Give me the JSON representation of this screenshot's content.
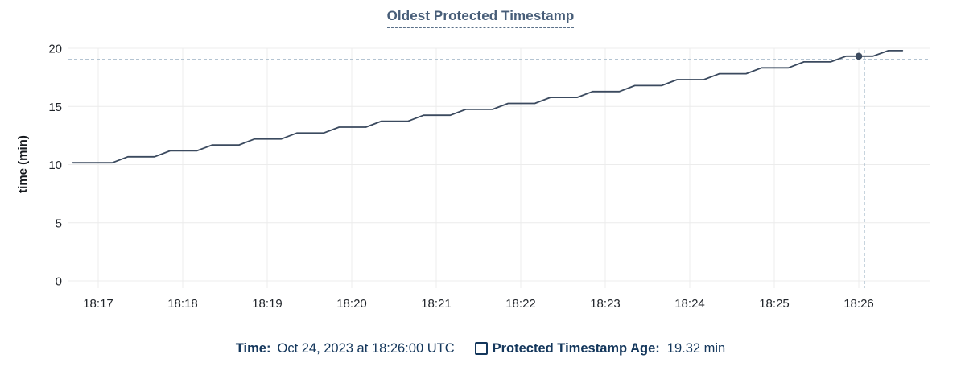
{
  "title": "Oldest Protected Timestamp",
  "y_axis": {
    "label": "time (min)"
  },
  "tooltip": {
    "time_label": "Time:",
    "time_value": "Oct 24, 2023 at 18:26:00 UTC",
    "series_label": "Protected Timestamp Age:",
    "series_value": "19.32 min"
  },
  "colors": {
    "navy_text": "#14375c",
    "title_text": "#475d78",
    "line": "#3b4a5f",
    "crosshair": "#a9bccb",
    "grid": "#ececec",
    "tick_text": "#1f2329",
    "axis_title_text": "#15181d"
  },
  "chart_data": {
    "type": "line",
    "title": "Oldest Protected Timestamp",
    "xlabel": "",
    "ylabel": "time (min)",
    "ylim": [
      0,
      20
    ],
    "y_ticks": [
      0,
      5,
      10,
      15,
      20
    ],
    "x_ticks": [
      {
        "t": 0,
        "label": "18:17"
      },
      {
        "t": 60,
        "label": "18:18"
      },
      {
        "t": 120,
        "label": "18:19"
      },
      {
        "t": 180,
        "label": "18:20"
      },
      {
        "t": 240,
        "label": "18:21"
      },
      {
        "t": 300,
        "label": "18:22"
      },
      {
        "t": 360,
        "label": "18:23"
      },
      {
        "t": 420,
        "label": "18:24"
      },
      {
        "t": 480,
        "label": "18:25"
      },
      {
        "t": 540,
        "label": "18:26"
      }
    ],
    "grid": true,
    "legend_position": "bottom",
    "series": [
      {
        "name": "Protected Timestamp Age",
        "unit": "min",
        "points": [
          [
            -18,
            10.16
          ],
          [
            10,
            10.16
          ],
          [
            21,
            10.67
          ],
          [
            40,
            10.67
          ],
          [
            51,
            11.18
          ],
          [
            70,
            11.18
          ],
          [
            81,
            11.69
          ],
          [
            100,
            11.69
          ],
          [
            111,
            12.2
          ],
          [
            130,
            12.2
          ],
          [
            141,
            12.71
          ],
          [
            160,
            12.71
          ],
          [
            171,
            13.22
          ],
          [
            190,
            13.22
          ],
          [
            201,
            13.73
          ],
          [
            220,
            13.73
          ],
          [
            231,
            14.24
          ],
          [
            250,
            14.24
          ],
          [
            261,
            14.75
          ],
          [
            280,
            14.75
          ],
          [
            291,
            15.26
          ],
          [
            310,
            15.26
          ],
          [
            321,
            15.77
          ],
          [
            340,
            15.77
          ],
          [
            351,
            16.28
          ],
          [
            370,
            16.28
          ],
          [
            381,
            16.79
          ],
          [
            400,
            16.79
          ],
          [
            411,
            17.3
          ],
          [
            430,
            17.3
          ],
          [
            441,
            17.81
          ],
          [
            460,
            17.81
          ],
          [
            471,
            18.32
          ],
          [
            490,
            18.32
          ],
          [
            501,
            18.83
          ],
          [
            520,
            18.83
          ],
          [
            531,
            19.32
          ],
          [
            550,
            19.32
          ],
          [
            561,
            19.8
          ],
          [
            571,
            19.8
          ]
        ]
      }
    ],
    "hover": {
      "t": 540,
      "v": 19.32,
      "crosshair_t": 544,
      "crosshair_v": 19.05
    }
  }
}
